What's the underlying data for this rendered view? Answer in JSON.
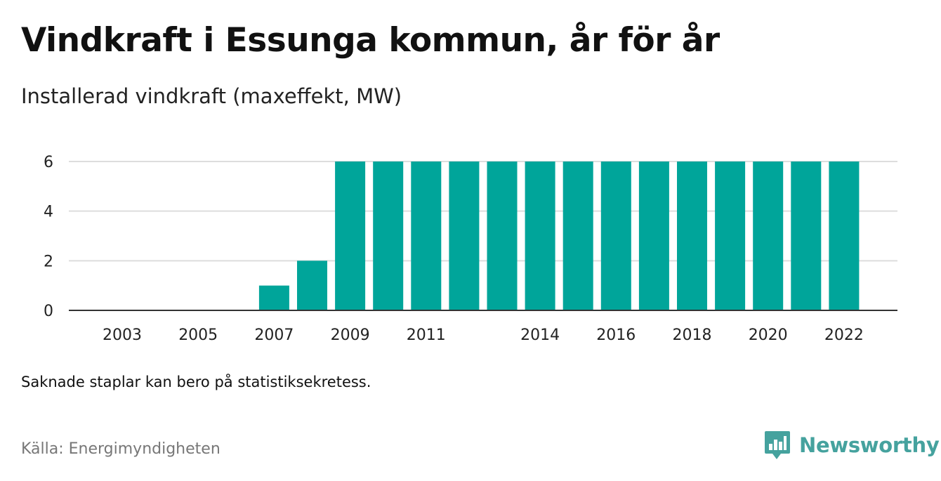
{
  "title": "Vindkraft i Essunga kommun, år för år",
  "subtitle": "Installerad vindkraft (maxeffekt, MW)",
  "note": "Saknade staplar kan bero på statistiksekretess.",
  "source": "Källa: Energimyndigheten",
  "brand": {
    "name": "Newsworthy",
    "icon": "newsworthy-logo-icon",
    "color": "#45a29e"
  },
  "chart_data": {
    "type": "bar",
    "title": "Vindkraft i Essunga kommun, år för år",
    "subtitle": "Installerad vindkraft (maxeffekt, MW)",
    "xlabel": "",
    "ylabel": "",
    "categories": [
      "2003",
      "2004",
      "2005",
      "2006",
      "2007",
      "2008",
      "2009",
      "2010",
      "2011",
      "2012",
      "2013",
      "2014",
      "2015",
      "2016",
      "2017",
      "2018",
      "2019",
      "2020",
      "2021",
      "2022"
    ],
    "values": [
      0,
      0,
      0,
      0,
      1,
      2,
      6,
      6,
      6,
      6,
      6,
      6,
      6,
      6,
      6,
      6,
      6,
      6,
      6,
      6
    ],
    "x_tick_labels": [
      "2003",
      "2005",
      "2007",
      "2009",
      "2011",
      "2014",
      "2016",
      "2018",
      "2020",
      "2022"
    ],
    "y_ticks": [
      0,
      2,
      4,
      6
    ],
    "ylim": [
      0,
      6
    ],
    "bar_color": "#00a59a",
    "grid": true
  }
}
